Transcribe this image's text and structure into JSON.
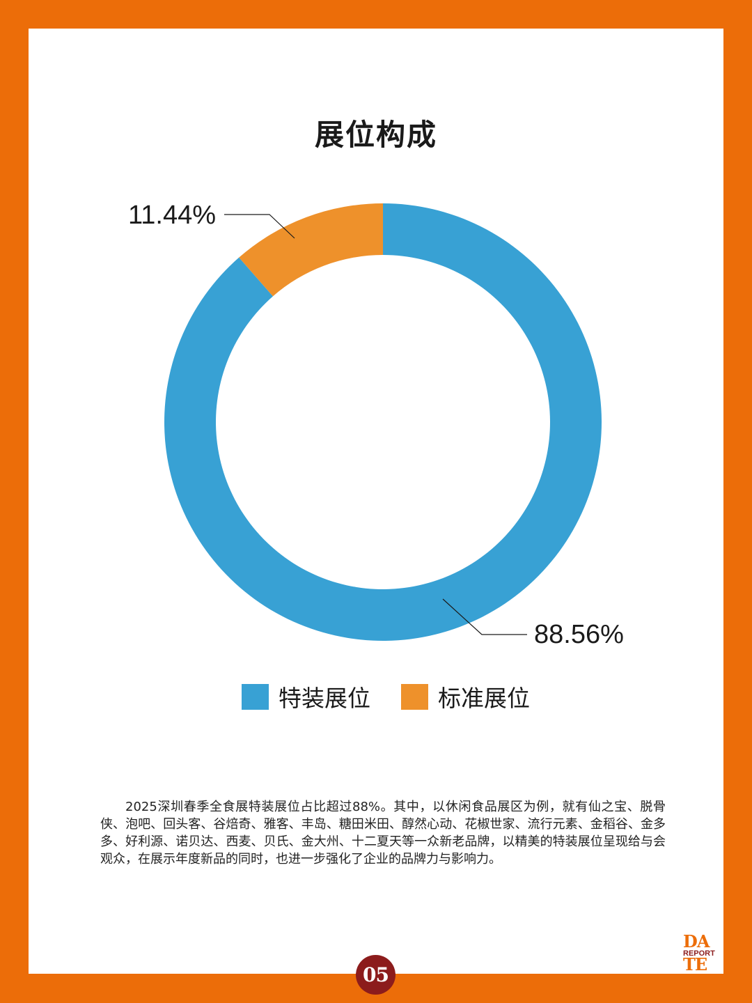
{
  "theme": {
    "accent": "#ec6d09",
    "panel": "#ffffff",
    "page_badge": "#8c1c1c"
  },
  "title": "展位构成",
  "chart_data": {
    "type": "pie",
    "variant": "donut",
    "categories": [
      "特装展位",
      "标准展位"
    ],
    "values": [
      88.56,
      11.44
    ],
    "labels": [
      "88.56%",
      "11.44%"
    ],
    "colors": [
      "#38a1d4",
      "#ee912b"
    ],
    "legend_position": "bottom",
    "start_angle": "12 o'clock, clockwise"
  },
  "legend": [
    {
      "label": "特装展位",
      "color": "#38a1d4"
    },
    {
      "label": "标准展位",
      "color": "#ee912b"
    }
  ],
  "body_text": "2025深圳春季全食展特装展位占比超过88%。其中，以休闲食品展区为例，就有仙之宝、脱骨侠、泡吧、回头客、谷焙奇、雅客、丰岛、糖田米田、醇然心动、花椒世家、流行元素、金稻谷、金多多、好利源、诺贝达、西麦、贝氏、金大州、十二夏天等一众新老品牌，以精美的特装展位呈现给与会观众，在展示年度新品的同时，也进一步强化了企业的品牌力与影响力。",
  "page_number": "05",
  "logo": {
    "line1": "DA",
    "line2": "REPORT",
    "line3": "TE"
  }
}
